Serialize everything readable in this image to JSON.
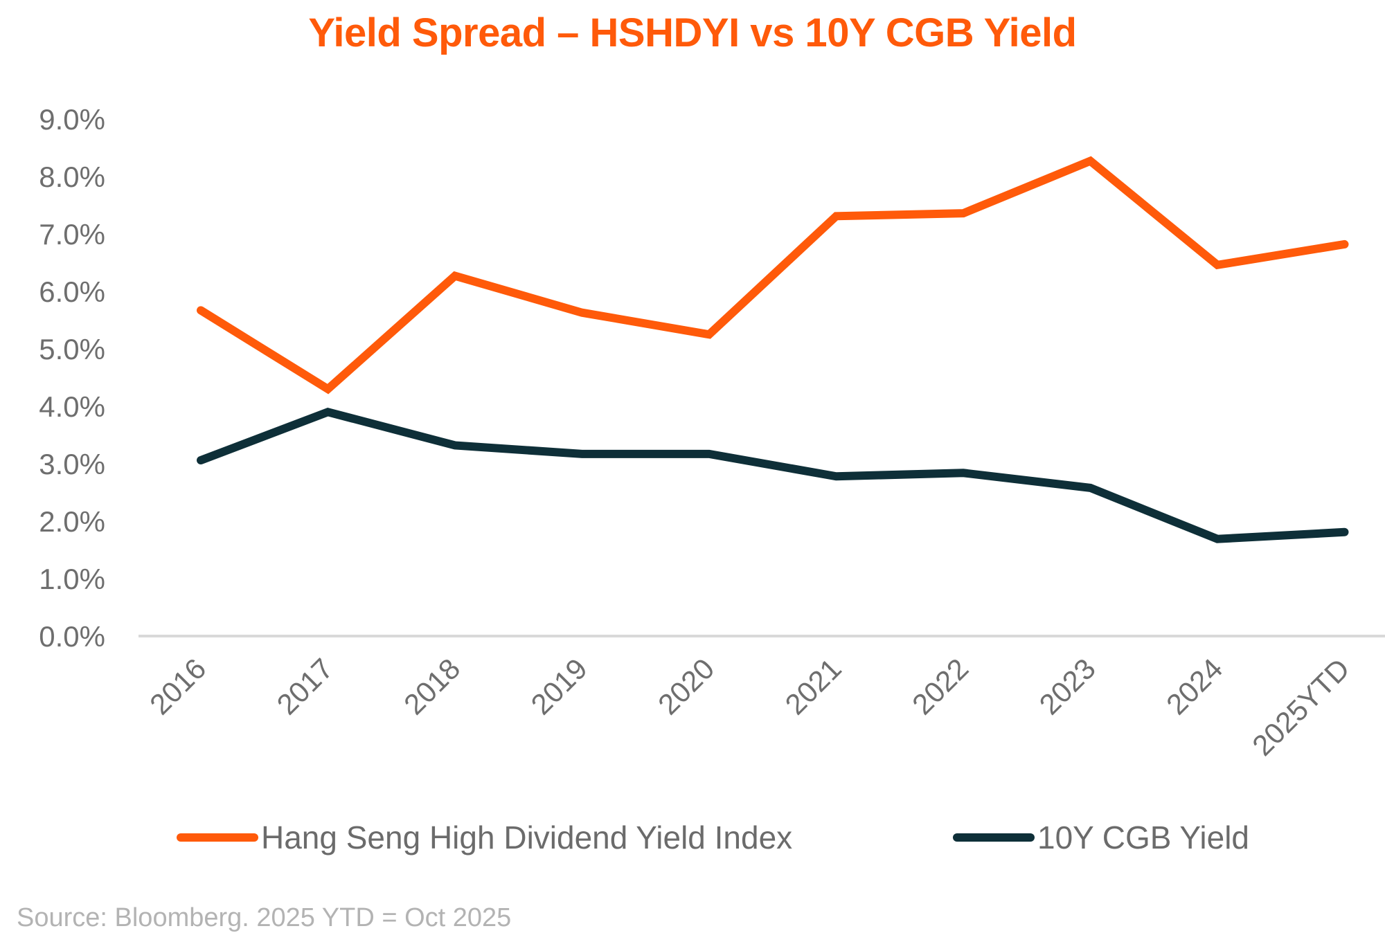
{
  "chart_data": {
    "type": "line",
    "title": "Yield Spread – HSHDYI vs 10Y CGB Yield",
    "xlabel": "",
    "ylabel": "",
    "categories": [
      "2016",
      "2017",
      "2018",
      "2019",
      "2020",
      "2021",
      "2022",
      "2023",
      "2024",
      "2025YTD"
    ],
    "series": [
      {
        "name": "Hang Seng High Dividend Yield Index",
        "color": "#ff5a0a",
        "values": [
          5.67,
          4.3,
          6.27,
          5.63,
          5.25,
          7.31,
          7.36,
          8.27,
          6.46,
          6.82
        ]
      },
      {
        "name": "10Y CGB Yield",
        "color": "#0e2f38",
        "values": [
          3.06,
          3.9,
          3.32,
          3.17,
          3.17,
          2.78,
          2.84,
          2.58,
          1.69,
          1.81
        ]
      }
    ],
    "ylim": [
      0,
      9
    ],
    "yticks": [
      "0.0%",
      "1.0%",
      "2.0%",
      "3.0%",
      "4.0%",
      "5.0%",
      "6.0%",
      "7.0%",
      "8.0%",
      "9.0%"
    ],
    "ytick_values": [
      0,
      1,
      2,
      3,
      4,
      5,
      6,
      7,
      8,
      9
    ],
    "grid": false,
    "legend_position": "bottom",
    "x_tick_rotation_deg": -45,
    "axis_color": "#d9d9d9",
    "tick_label_color": "#6e6e6e"
  },
  "source_note": "Source: Bloomberg. 2025 YTD = Oct 2025"
}
